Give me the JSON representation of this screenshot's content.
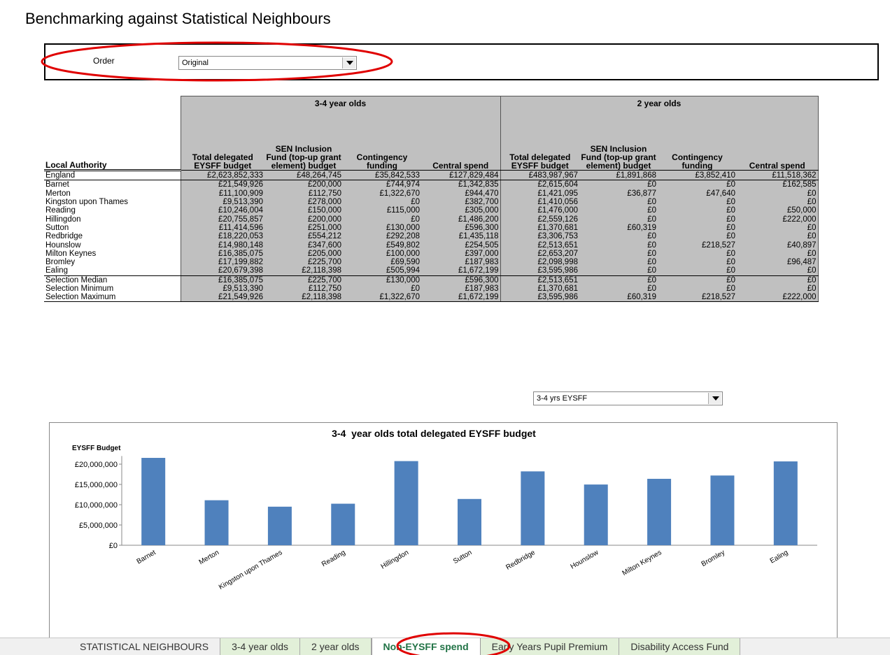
{
  "title": "Benchmarking against Statistical Neighbours",
  "order": {
    "label": "Order",
    "value": "Original"
  },
  "table": {
    "groups": [
      "3-4 year olds",
      "2 year olds"
    ],
    "first_header": "Local Authority",
    "columns": [
      "Total delegated EYSFF budget",
      "SEN Inclusion Fund (top-up grant element) budget",
      "Contingency funding",
      "Central spend",
      "Total delegated EYSFF budget",
      "SEN Inclusion Fund (top-up grant element) budget",
      "Contingency funding",
      "Central spend"
    ],
    "rows": [
      [
        "England",
        "£2,623,852,333",
        "£48,264,745",
        "£35,842,533",
        "£127,829,484",
        "£483,987,967",
        "£1,891,868",
        "£3,852,410",
        "£11,518,362"
      ],
      [
        "Barnet",
        "£21,549,926",
        "£200,000",
        "£744,974",
        "£1,342,835",
        "£2,615,604",
        "£0",
        "£0",
        "£162,585"
      ],
      [
        "Merton",
        "£11,100,909",
        "£112,750",
        "£1,322,670",
        "£944,470",
        "£1,421,095",
        "£36,877",
        "£47,640",
        "£0"
      ],
      [
        "Kingston upon Thames",
        "£9,513,390",
        "£278,000",
        "£0",
        "£382,700",
        "£1,410,056",
        "£0",
        "£0",
        "£0"
      ],
      [
        "Reading",
        "£10,246,004",
        "£150,000",
        "£115,000",
        "£305,000",
        "£1,476,000",
        "£0",
        "£0",
        "£50,000"
      ],
      [
        "Hillingdon",
        "£20,755,857",
        "£200,000",
        "£0",
        "£1,486,200",
        "£2,559,126",
        "£0",
        "£0",
        "£222,000"
      ],
      [
        "Sutton",
        "£11,414,596",
        "£251,000",
        "£130,000",
        "£596,300",
        "£1,370,681",
        "£60,319",
        "£0",
        "£0"
      ],
      [
        "Redbridge",
        "£18,220,053",
        "£554,212",
        "£292,208",
        "£1,435,118",
        "£3,306,753",
        "£0",
        "£0",
        "£0"
      ],
      [
        "Hounslow",
        "£14,980,148",
        "£347,600",
        "£549,802",
        "£254,505",
        "£2,513,651",
        "£0",
        "£218,527",
        "£40,897"
      ],
      [
        "Milton Keynes",
        "£16,385,075",
        "£205,000",
        "£100,000",
        "£397,000",
        "£2,653,207",
        "£0",
        "£0",
        "£0"
      ],
      [
        "Bromley",
        "£17,199,882",
        "£225,700",
        "£69,590",
        "£187,983",
        "£2,098,998",
        "£0",
        "£0",
        "£96,487"
      ],
      [
        "Ealing",
        "£20,679,398",
        "£2,118,398",
        "£505,994",
        "£1,672,199",
        "£3,595,986",
        "£0",
        "£0",
        "£0"
      ],
      [
        "Selection Median",
        "£16,385,075",
        "£225,700",
        "£130,000",
        "£596,300",
        "£2,513,651",
        "£0",
        "£0",
        "£0"
      ],
      [
        "Selection Minimum",
        "£9,513,390",
        "£112,750",
        "£0",
        "£187,983",
        "£1,370,681",
        "£0",
        "£0",
        "£0"
      ],
      [
        "Selection Maximum",
        "£21,549,926",
        "£2,118,398",
        "£1,322,670",
        "£1,672,199",
        "£3,595,986",
        "£60,319",
        "£218,527",
        "£222,000"
      ]
    ]
  },
  "chart_selector": "3-4 yrs EYSFF",
  "chart_data": {
    "type": "bar",
    "title": "3-4  year olds total delegated EYSFF budget",
    "y_label": "EYSFF Budget",
    "categories": [
      "Barnet",
      "Merton",
      "Kingston upon Thames",
      "Reading",
      "Hillingdon",
      "Sutton",
      "Redbridge",
      "Hounslow",
      "Milton Keynes",
      "Bromley",
      "Ealing"
    ],
    "values": [
      21549926,
      11100909,
      9513390,
      10246004,
      20755857,
      11414596,
      18220053,
      14980148,
      16385075,
      17199882,
      20679398
    ],
    "color": "#4f81bd",
    "ylim": [
      0,
      22000000
    ],
    "yticks": [
      {
        "value": 0,
        "label": "£0"
      },
      {
        "value": 5000000,
        "label": "£5,000,000"
      },
      {
        "value": 10000000,
        "label": "£10,000,000"
      },
      {
        "value": 15000000,
        "label": "£15,000,000"
      },
      {
        "value": 20000000,
        "label": "£20,000,000"
      }
    ]
  },
  "tabs": [
    "STATISTICAL NEIGHBOURS",
    "3-4 year olds",
    "2 year olds",
    "Non-EYSFF spend",
    "Early Years Pupil Premium",
    "Disability Access Fund"
  ],
  "active_tab": 3
}
